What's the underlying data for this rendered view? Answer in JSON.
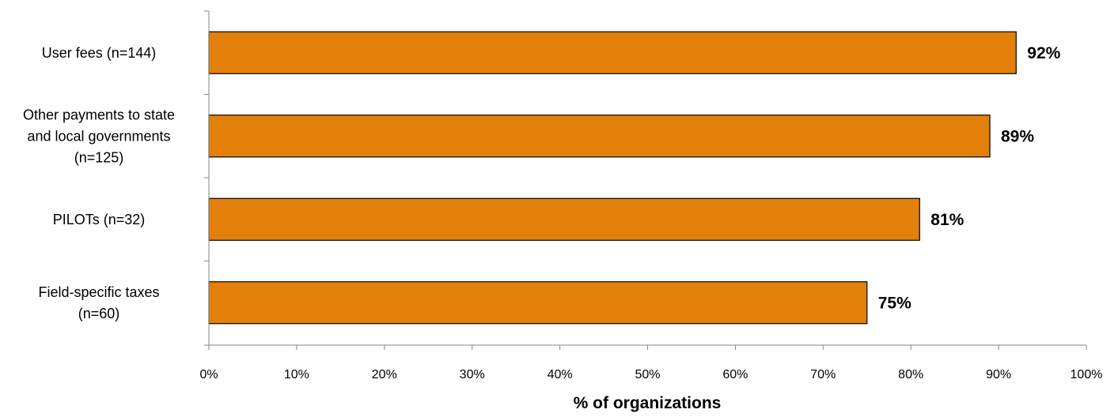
{
  "chart_data": {
    "type": "bar",
    "orientation": "horizontal",
    "categories": [
      [
        "User fees (n=144)"
      ],
      [
        "Other payments to state",
        "and local governments",
        "(n=125)"
      ],
      [
        "PILOTs (n=32)"
      ],
      [
        "Field-specific taxes",
        "(n=60)"
      ]
    ],
    "values": [
      92,
      89,
      81,
      75
    ],
    "data_labels": [
      "92%",
      "89%",
      "81%",
      "75%"
    ],
    "xlabel": "% of organizations",
    "ylabel": "",
    "xlim": [
      0,
      100
    ],
    "xticks": [
      "0%",
      "10%",
      "20%",
      "30%",
      "40%",
      "50%",
      "60%",
      "70%",
      "80%",
      "90%",
      "100%"
    ],
    "grid": false,
    "legend": "none",
    "bar_color": "#E3800C",
    "bar_edge_color": "#000000"
  }
}
